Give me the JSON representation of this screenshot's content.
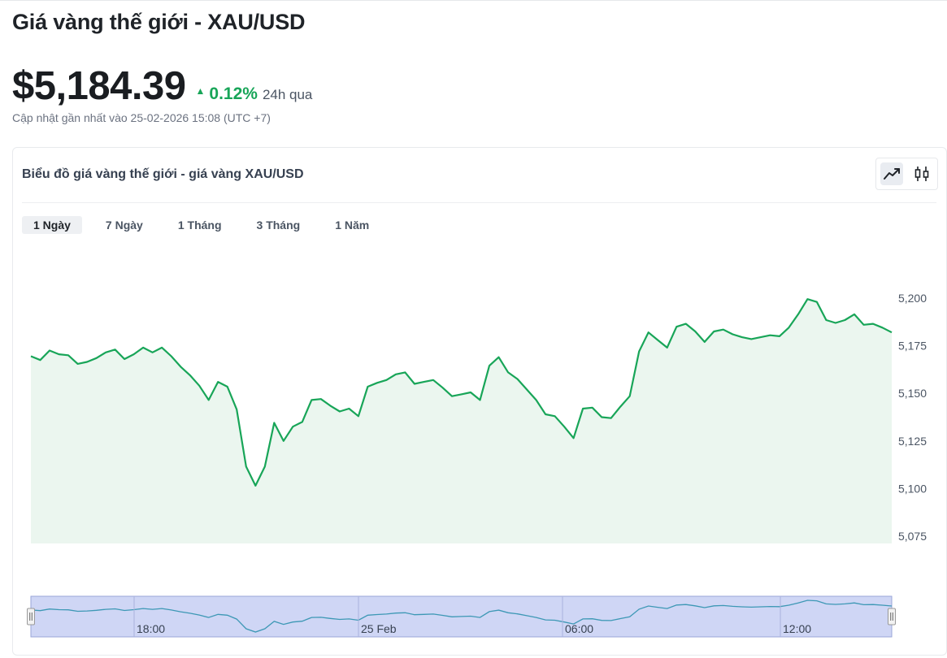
{
  "page": {
    "title": "Giá vàng thế giới - XAU/USD",
    "price": "$5,184.39",
    "change_pct": "0.12%",
    "change_period": "24h qua",
    "updated": "Cập nhật gần nhất vào 25-02-2026 15:08 (UTC +7)"
  },
  "card": {
    "title": "Biểu đồ giá vàng thế giới - giá vàng XAU/USD",
    "chart_types": [
      "line-chart-icon",
      "candlestick-icon"
    ],
    "tabs": [
      {
        "label": "1 Ngày",
        "active": true
      },
      {
        "label": "7 Ngày",
        "active": false
      },
      {
        "label": "1 Tháng",
        "active": false
      },
      {
        "label": "3 Tháng",
        "active": false
      },
      {
        "label": "1 Năm",
        "active": false
      }
    ]
  },
  "colors": {
    "line": "#18a558",
    "area": "#ebf6ef",
    "navigator_fill": "#cfd6f5",
    "navigator_line": "#3d98b5"
  },
  "chart_data": {
    "type": "area",
    "y_ticks": [
      "5,200",
      "5,175",
      "5,150",
      "5,125",
      "5,100",
      "5,075"
    ],
    "ylim": [
      5075,
      5200
    ],
    "navigator_labels": [
      "18:00",
      "25 Feb",
      "06:00",
      "12:00"
    ],
    "values": [
      5169.5,
      5167.5,
      5172.5,
      5170.5,
      5170,
      5165.5,
      5166.5,
      5168.5,
      5171.5,
      5173,
      5168,
      5170.5,
      5174,
      5171.5,
      5174,
      5169.5,
      5164,
      5159.5,
      5154,
      5146.5,
      5156,
      5153.5,
      5141.5,
      5111.5,
      5101.5,
      5111.5,
      5134.5,
      5125,
      5132.5,
      5135,
      5146.5,
      5147,
      5143.5,
      5140.5,
      5142,
      5138,
      5153.5,
      5155.5,
      5157,
      5160,
      5161,
      5155,
      5156,
      5157,
      5153,
      5148.5,
      5149.5,
      5150.5,
      5146.5,
      5164.5,
      5169,
      5161,
      5157.5,
      5152,
      5146.5,
      5139,
      5138,
      5132.5,
      5126.5,
      5142,
      5142.5,
      5137.5,
      5137,
      5143,
      5148.5,
      5172,
      5182,
      5178,
      5174,
      5185,
      5186.5,
      5182.5,
      5177,
      5182.5,
      5183.5,
      5181,
      5179.5,
      5178.5,
      5179.5,
      5180.5,
      5180,
      5184.5,
      5191.5,
      5199.5,
      5198,
      5188.5,
      5187,
      5188.5,
      5191.5,
      5186,
      5186.5,
      5184.5,
      5182
    ]
  }
}
